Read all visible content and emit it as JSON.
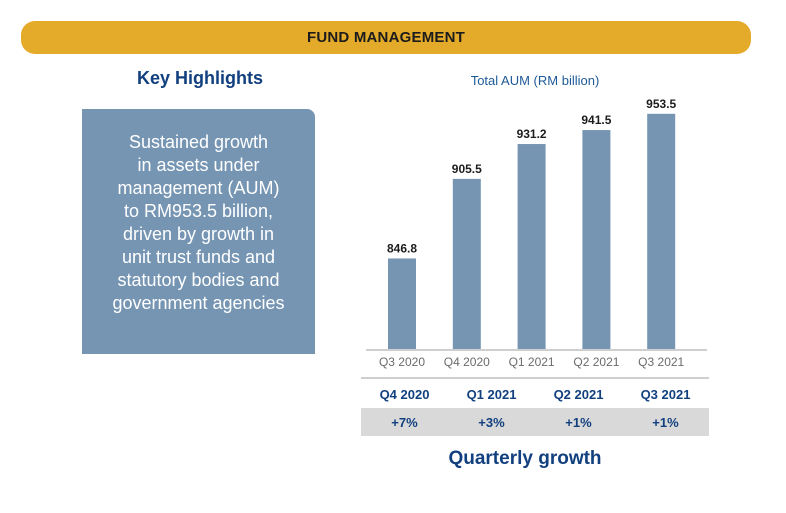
{
  "header": {
    "title": "FUND MANAGEMENT"
  },
  "highlights": {
    "title": "Key Highlights",
    "lines": [
      "Sustained growth",
      "in assets under",
      "management (AUM)",
      "to RM953.5 billion,",
      "driven by growth in",
      "unit trust funds and",
      "statutory bodies and",
      "government agencies"
    ]
  },
  "colors": {
    "banner": "#e4aa2a",
    "bar": "#7595b3",
    "accent_text": "#12407f",
    "growth_row_bg": "#d9d9d9"
  },
  "chart_data": {
    "type": "bar",
    "title": "Total AUM (RM billion)",
    "categories": [
      "Q3 2020",
      "Q4 2020",
      "Q1 2021",
      "Q2 2021",
      "Q3 2021"
    ],
    "values": [
      846.8,
      905.5,
      931.2,
      941.5,
      953.5
    ],
    "value_labels": [
      "846.8",
      "905.5",
      "931.2",
      "941.5",
      "953.5"
    ],
    "xlabel": "",
    "ylabel": "",
    "ylim": [
      780,
      960
    ],
    "grid": false,
    "legend": "none"
  },
  "growth": {
    "title": "Quarterly growth",
    "periods": [
      "Q4 2020",
      "Q1 2021",
      "Q2 2021",
      "Q3 2021"
    ],
    "values": [
      "+7%",
      "+3%",
      "+1%",
      "+1%"
    ]
  }
}
